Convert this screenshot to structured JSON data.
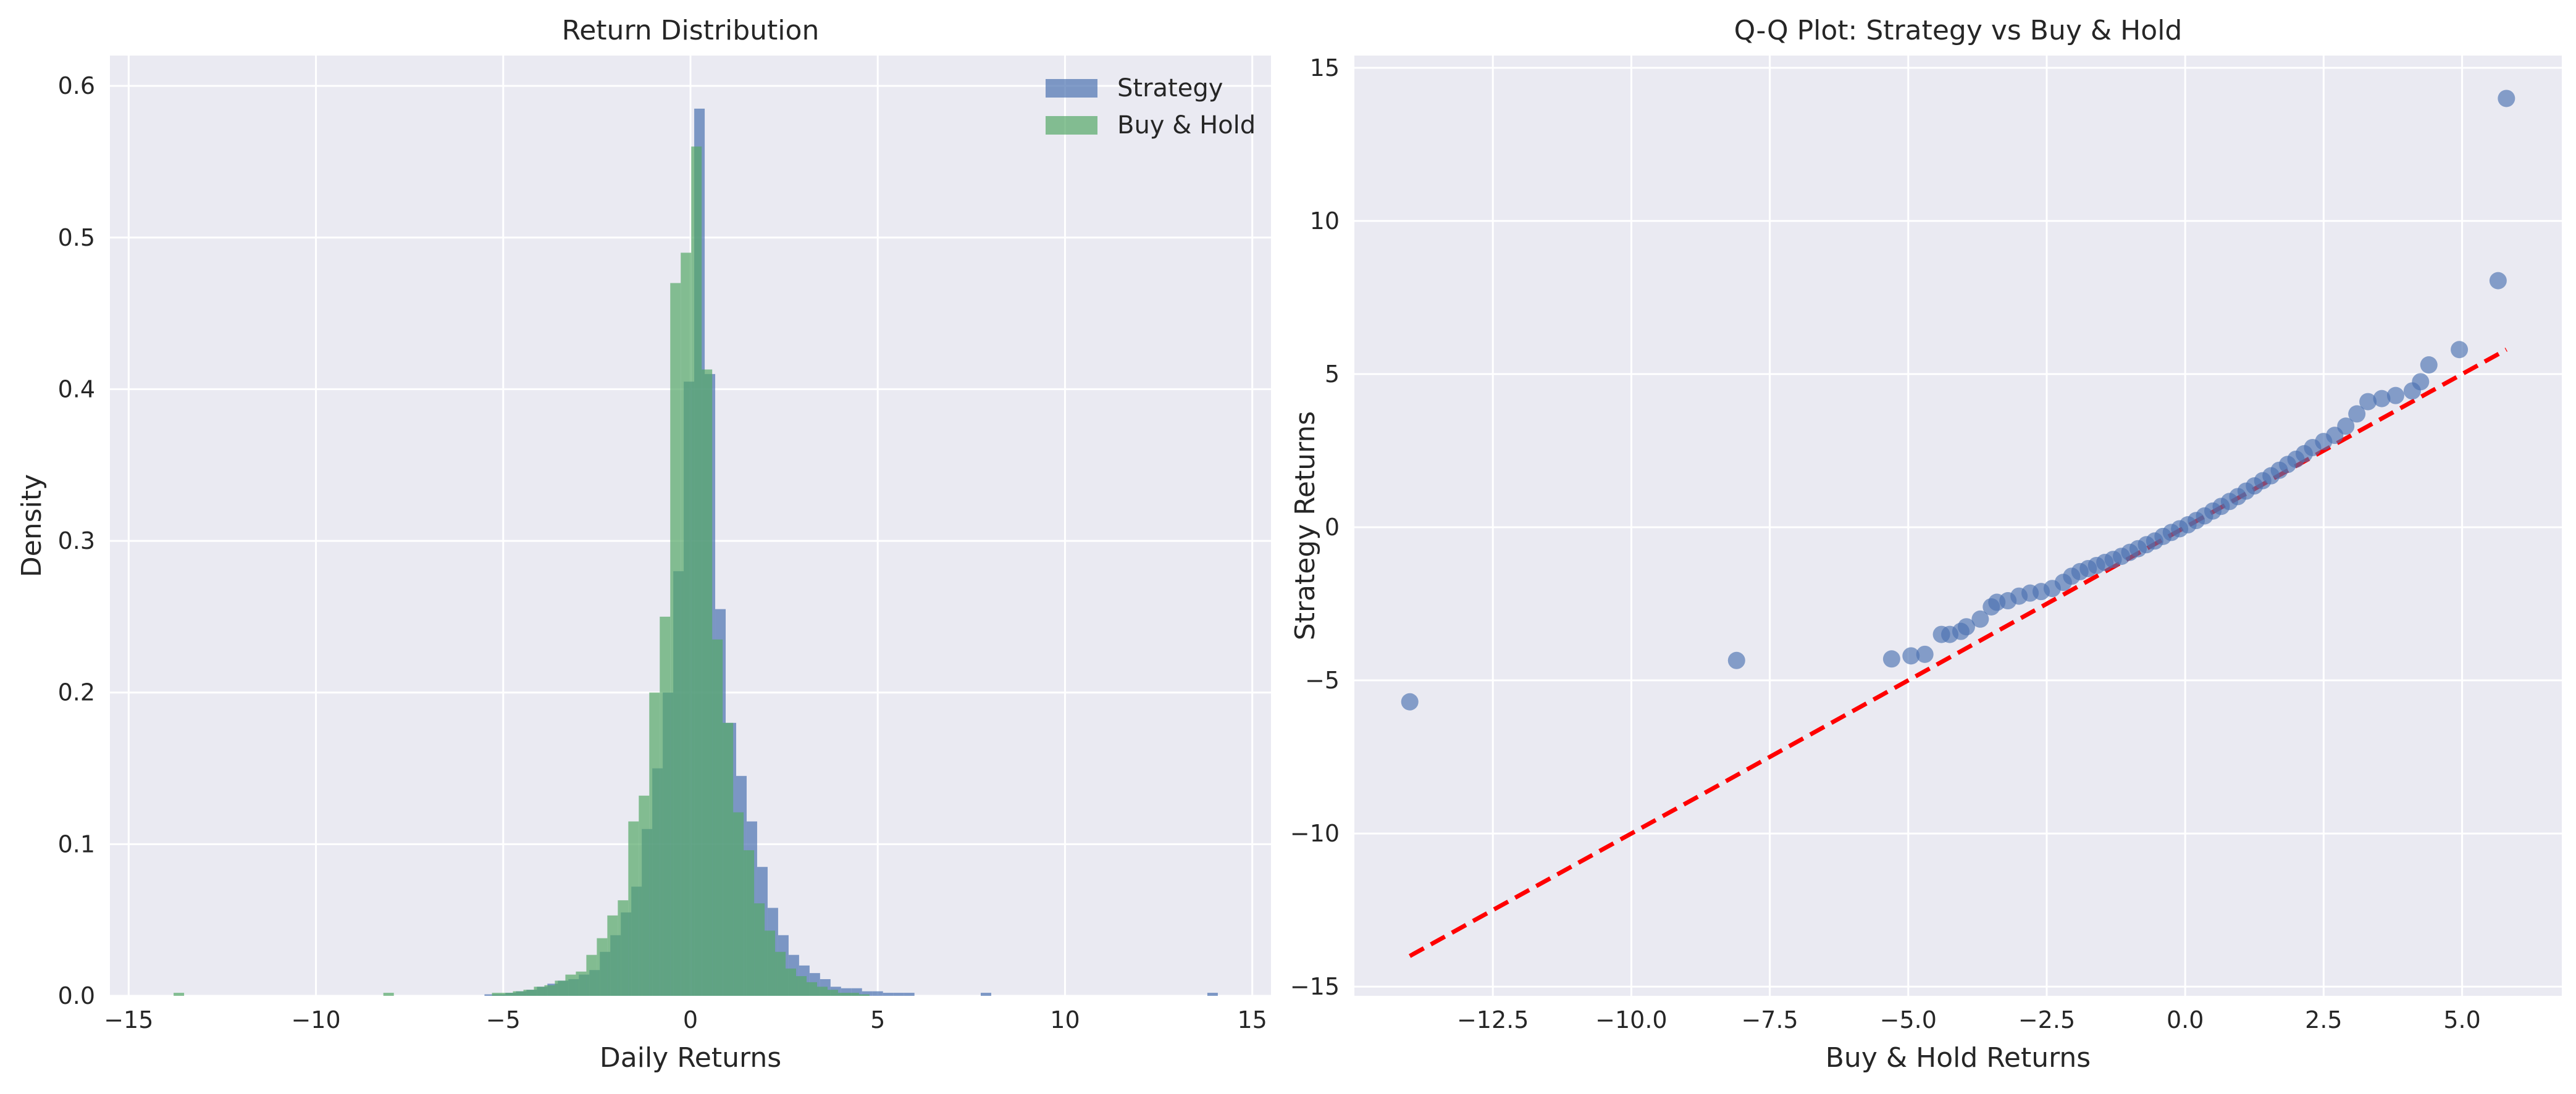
{
  "colors": {
    "axes_bg": "#eaeaf2",
    "grid": "#ffffff",
    "strategy": "#4c72b0",
    "buy_hold": "#55a868",
    "reference_line": "#ff0000",
    "text": "#262626"
  },
  "chart_data": [
    {
      "type": "histogram",
      "title": "Return Distribution",
      "xlabel": "Daily Returns",
      "ylabel": "Density",
      "xlim": [
        -15.5,
        15.5
      ],
      "ylim": [
        0,
        0.62
      ],
      "xticks": [
        -15,
        -10,
        -5,
        0,
        5,
        10,
        15
      ],
      "xtick_labels": [
        "−15",
        "−10",
        "−5",
        "0",
        "5",
        "10",
        "15"
      ],
      "yticks": [
        0.0,
        0.1,
        0.2,
        0.3,
        0.4,
        0.5,
        0.6
      ],
      "ytick_labels": [
        "0.0",
        "0.1",
        "0.2",
        "0.3",
        "0.4",
        "0.5",
        "0.6"
      ],
      "grid": true,
      "legend": "top-right",
      "bin_width": 0.28,
      "series": [
        {
          "name": "Strategy",
          "color": "#4c72b0",
          "opacity": 0.7,
          "bins": [
            [
              -5.5,
              0.001
            ],
            [
              -5.22,
              0.001
            ],
            [
              -4.94,
              0.002
            ],
            [
              -4.66,
              0.003
            ],
            [
              -4.38,
              0.004
            ],
            [
              -4.1,
              0.006
            ],
            [
              -3.82,
              0.008
            ],
            [
              -3.54,
              0.01
            ],
            [
              -3.26,
              0.011
            ],
            [
              -2.98,
              0.014
            ],
            [
              -2.7,
              0.017
            ],
            [
              -2.42,
              0.029
            ],
            [
              -2.14,
              0.04
            ],
            [
              -1.86,
              0.055
            ],
            [
              -1.58,
              0.072
            ],
            [
              -1.3,
              0.11
            ],
            [
              -1.02,
              0.15
            ],
            [
              -0.74,
              0.2
            ],
            [
              -0.46,
              0.28
            ],
            [
              -0.18,
              0.405
            ],
            [
              0.1,
              0.585
            ],
            [
              0.38,
              0.41
            ],
            [
              0.66,
              0.255
            ],
            [
              0.94,
              0.18
            ],
            [
              1.22,
              0.145
            ],
            [
              1.5,
              0.115
            ],
            [
              1.78,
              0.085
            ],
            [
              2.06,
              0.058
            ],
            [
              2.34,
              0.04
            ],
            [
              2.62,
              0.027
            ],
            [
              2.9,
              0.02
            ],
            [
              3.18,
              0.015
            ],
            [
              3.46,
              0.011
            ],
            [
              3.74,
              0.006
            ],
            [
              4.02,
              0.005
            ],
            [
              4.3,
              0.005
            ],
            [
              4.58,
              0.003
            ],
            [
              4.86,
              0.003
            ],
            [
              5.14,
              0.002
            ],
            [
              5.42,
              0.002
            ],
            [
              5.7,
              0.002
            ],
            [
              7.75,
              0.002
            ],
            [
              13.8,
              0.002
            ]
          ]
        },
        {
          "name": "Buy & Hold",
          "color": "#55a868",
          "opacity": 0.7,
          "bins": [
            [
              -13.8,
              0.002
            ],
            [
              -8.2,
              0.002
            ],
            [
              -5.3,
              0.002
            ],
            [
              -5.02,
              0.002
            ],
            [
              -4.74,
              0.003
            ],
            [
              -4.46,
              0.004
            ],
            [
              -4.18,
              0.006
            ],
            [
              -3.9,
              0.007
            ],
            [
              -3.62,
              0.01
            ],
            [
              -3.34,
              0.014
            ],
            [
              -3.06,
              0.016
            ],
            [
              -2.78,
              0.027
            ],
            [
              -2.5,
              0.038
            ],
            [
              -2.22,
              0.053
            ],
            [
              -1.94,
              0.063
            ],
            [
              -1.66,
              0.115
            ],
            [
              -1.38,
              0.132
            ],
            [
              -1.1,
              0.2
            ],
            [
              -0.82,
              0.25
            ],
            [
              -0.54,
              0.47
            ],
            [
              -0.26,
              0.49
            ],
            [
              0.02,
              0.56
            ],
            [
              0.3,
              0.413
            ],
            [
              0.58,
              0.235
            ],
            [
              0.86,
              0.18
            ],
            [
              1.14,
              0.121
            ],
            [
              1.42,
              0.096
            ],
            [
              1.7,
              0.061
            ],
            [
              1.98,
              0.043
            ],
            [
              2.26,
              0.029
            ],
            [
              2.54,
              0.018
            ],
            [
              2.82,
              0.013
            ],
            [
              3.1,
              0.009
            ],
            [
              3.38,
              0.006
            ],
            [
              3.66,
              0.004
            ],
            [
              3.94,
              0.002
            ],
            [
              4.22,
              0.002
            ],
            [
              4.5,
              0.001
            ]
          ]
        }
      ]
    },
    {
      "type": "scatter",
      "title": "Q-Q Plot: Strategy vs Buy & Hold",
      "xlabel": "Buy & Hold Returns",
      "ylabel": "Strategy Returns",
      "xlim": [
        -15.0,
        6.8
      ],
      "ylim": [
        -15.3,
        15.4
      ],
      "xticks": [
        -12.5,
        -10.0,
        -7.5,
        -5.0,
        -2.5,
        0.0,
        2.5,
        5.0
      ],
      "xtick_labels": [
        "−12.5",
        "−10.0",
        "−7.5",
        "−5.0",
        "−2.5",
        "0.0",
        "2.5",
        "5.0"
      ],
      "yticks": [
        -15,
        -10,
        -5,
        0,
        5,
        10,
        15
      ],
      "ytick_labels": [
        "−15",
        "−10",
        "−5",
        "0",
        "5",
        "10",
        "15"
      ],
      "grid": true,
      "point_color": "#4c72b0",
      "point_opacity": 0.65,
      "reference_line": {
        "from": [
          -14.0,
          -14.0
        ],
        "to": [
          5.8,
          5.8
        ],
        "style": "dashed",
        "color": "#ff0000"
      },
      "points": [
        [
          -14.0,
          -5.7
        ],
        [
          -8.1,
          -4.35
        ],
        [
          -5.3,
          -4.3
        ],
        [
          -4.95,
          -4.2
        ],
        [
          -4.7,
          -4.15
        ],
        [
          -4.4,
          -3.5
        ],
        [
          -4.25,
          -3.5
        ],
        [
          -4.05,
          -3.4
        ],
        [
          -3.95,
          -3.25
        ],
        [
          -3.7,
          -3.0
        ],
        [
          -3.5,
          -2.6
        ],
        [
          -3.4,
          -2.45
        ],
        [
          -3.2,
          -2.4
        ],
        [
          -3.0,
          -2.25
        ],
        [
          -2.8,
          -2.15
        ],
        [
          -2.6,
          -2.1
        ],
        [
          -2.4,
          -2.0
        ],
        [
          -2.2,
          -1.8
        ],
        [
          -2.05,
          -1.6
        ],
        [
          -1.9,
          -1.45
        ],
        [
          -1.75,
          -1.35
        ],
        [
          -1.6,
          -1.25
        ],
        [
          -1.45,
          -1.15
        ],
        [
          -1.3,
          -1.05
        ],
        [
          -1.15,
          -0.95
        ],
        [
          -1.0,
          -0.82
        ],
        [
          -0.85,
          -0.7
        ],
        [
          -0.7,
          -0.57
        ],
        [
          -0.55,
          -0.45
        ],
        [
          -0.4,
          -0.3
        ],
        [
          -0.25,
          -0.17
        ],
        [
          -0.1,
          -0.05
        ],
        [
          0.05,
          0.08
        ],
        [
          0.2,
          0.22
        ],
        [
          0.35,
          0.37
        ],
        [
          0.5,
          0.53
        ],
        [
          0.65,
          0.68
        ],
        [
          0.8,
          0.84
        ],
        [
          0.95,
          1.0
        ],
        [
          1.1,
          1.18
        ],
        [
          1.25,
          1.35
        ],
        [
          1.4,
          1.52
        ],
        [
          1.55,
          1.68
        ],
        [
          1.7,
          1.86
        ],
        [
          1.85,
          2.05
        ],
        [
          2.0,
          2.22
        ],
        [
          2.15,
          2.4
        ],
        [
          2.3,
          2.6
        ],
        [
          2.5,
          2.8
        ],
        [
          2.7,
          3.0
        ],
        [
          2.9,
          3.3
        ],
        [
          3.1,
          3.7
        ],
        [
          3.3,
          4.1
        ],
        [
          3.55,
          4.2
        ],
        [
          3.8,
          4.3
        ],
        [
          4.1,
          4.45
        ],
        [
          4.25,
          4.75
        ],
        [
          4.4,
          5.3
        ],
        [
          4.95,
          5.8
        ],
        [
          5.65,
          8.05
        ],
        [
          5.8,
          14.0
        ]
      ]
    }
  ]
}
